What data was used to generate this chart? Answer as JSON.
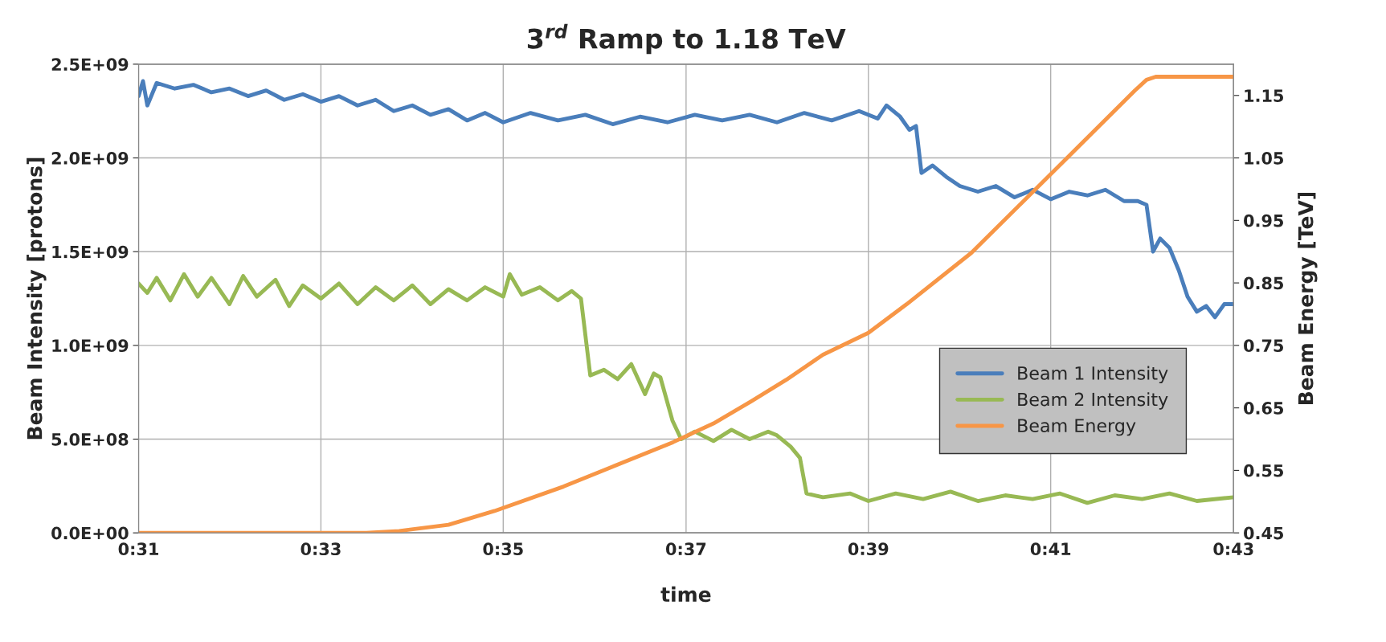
{
  "chart_data": {
    "type": "line",
    "title": "3$^{rd}$ Ramp to 1.18 TeV",
    "xlabel": "time",
    "ylabel": "Beam Intensity [protons]",
    "y2label": "Beam Energy [TeV]",
    "xlim": [
      0.5167,
      0.7167
    ],
    "xticks": [
      {
        "value": 0.5167,
        "label": "0:31"
      },
      {
        "value": 0.55,
        "label": "0:33"
      },
      {
        "value": 0.5833,
        "label": "0:35"
      },
      {
        "value": 0.6167,
        "label": "0:37"
      },
      {
        "value": 0.65,
        "label": "0:39"
      },
      {
        "value": 0.6833,
        "label": "0:41"
      },
      {
        "value": 0.7167,
        "label": "0:43"
      }
    ],
    "ylim": [
      0,
      2500000000
    ],
    "yticks": [
      {
        "value": 0,
        "label": "0.0E+00"
      },
      {
        "value": 500000000,
        "label": "5.0E+08"
      },
      {
        "value": 1000000000,
        "label": "1.0E+09"
      },
      {
        "value": 1500000000,
        "label": "1.5E+09"
      },
      {
        "value": 2000000000,
        "label": "2.0E+09"
      },
      {
        "value": 2500000000,
        "label": "2.5E+09"
      }
    ],
    "y2lim": [
      0.45,
      1.2
    ],
    "y2ticks": [
      0.45,
      0.55,
      0.65,
      0.75,
      0.85,
      0.95,
      1.05,
      1.15
    ],
    "grid": true,
    "legend": "right",
    "series": [
      {
        "name": "Beam 1 Intensity",
        "color": "#4a7ebb",
        "x": [
          0.5167,
          0.5175,
          0.5183,
          0.52,
          0.5233,
          0.5267,
          0.53,
          0.5333,
          0.5367,
          0.54,
          0.5433,
          0.5467,
          0.55,
          0.5533,
          0.5567,
          0.56,
          0.5633,
          0.5667,
          0.57,
          0.5733,
          0.5767,
          0.58,
          0.5833,
          0.5883,
          0.5933,
          0.5983,
          0.6033,
          0.6083,
          0.6133,
          0.6183,
          0.6233,
          0.6283,
          0.6333,
          0.6383,
          0.6433,
          0.6483,
          0.6517,
          0.6533,
          0.6558,
          0.6575,
          0.6587,
          0.6597,
          0.6617,
          0.6642,
          0.6667,
          0.67,
          0.6733,
          0.6767,
          0.68,
          0.6833,
          0.6867,
          0.69,
          0.6933,
          0.6967,
          0.6992,
          0.7008,
          0.702,
          0.7033,
          0.705,
          0.7067,
          0.7083,
          0.71,
          0.7117,
          0.7133,
          0.715,
          0.7167
        ],
        "values": [
          2330000000,
          2410000000,
          2280000000,
          2400000000,
          2370000000,
          2390000000,
          2350000000,
          2370000000,
          2330000000,
          2360000000,
          2310000000,
          2340000000,
          2300000000,
          2330000000,
          2280000000,
          2310000000,
          2250000000,
          2280000000,
          2230000000,
          2260000000,
          2200000000,
          2240000000,
          2190000000,
          2240000000,
          2200000000,
          2230000000,
          2180000000,
          2220000000,
          2190000000,
          2230000000,
          2200000000,
          2230000000,
          2190000000,
          2240000000,
          2200000000,
          2250000000,
          2210000000,
          2280000000,
          2220000000,
          2150000000,
          2170000000,
          1920000000,
          1960000000,
          1900000000,
          1850000000,
          1820000000,
          1850000000,
          1790000000,
          1830000000,
          1780000000,
          1820000000,
          1800000000,
          1830000000,
          1770000000,
          1770000000,
          1750000000,
          1500000000,
          1570000000,
          1520000000,
          1400000000,
          1260000000,
          1180000000,
          1210000000,
          1150000000,
          1220000000,
          1220000000
        ]
      },
      {
        "name": "Beam 2 Intensity",
        "color": "#98b954",
        "x": [
          0.5167,
          0.5183,
          0.52,
          0.5225,
          0.525,
          0.5275,
          0.53,
          0.5333,
          0.5358,
          0.5383,
          0.5417,
          0.5442,
          0.5467,
          0.55,
          0.5533,
          0.5567,
          0.56,
          0.5633,
          0.5667,
          0.57,
          0.5733,
          0.5767,
          0.58,
          0.5833,
          0.5845,
          0.5867,
          0.59,
          0.5933,
          0.5958,
          0.5975,
          0.5992,
          0.6017,
          0.6042,
          0.6067,
          0.6092,
          0.6108,
          0.612,
          0.6142,
          0.6158,
          0.6183,
          0.6217,
          0.625,
          0.6283,
          0.6317,
          0.6333,
          0.6358,
          0.6375,
          0.6387,
          0.6417,
          0.6467,
          0.65,
          0.655,
          0.66,
          0.665,
          0.67,
          0.675,
          0.68,
          0.685,
          0.69,
          0.695,
          0.7,
          0.705,
          0.71,
          0.7167
        ],
        "values": [
          1330000000,
          1280000000,
          1360000000,
          1240000000,
          1380000000,
          1260000000,
          1360000000,
          1220000000,
          1370000000,
          1260000000,
          1350000000,
          1210000000,
          1320000000,
          1250000000,
          1330000000,
          1220000000,
          1310000000,
          1240000000,
          1320000000,
          1220000000,
          1300000000,
          1240000000,
          1310000000,
          1260000000,
          1380000000,
          1270000000,
          1310000000,
          1240000000,
          1290000000,
          1250000000,
          840000000,
          870000000,
          820000000,
          900000000,
          740000000,
          850000000,
          830000000,
          600000000,
          500000000,
          540000000,
          490000000,
          550000000,
          500000000,
          540000000,
          520000000,
          460000000,
          400000000,
          210000000,
          190000000,
          210000000,
          170000000,
          210000000,
          180000000,
          220000000,
          170000000,
          200000000,
          180000000,
          210000000,
          160000000,
          200000000,
          180000000,
          210000000,
          170000000,
          190000000
        ]
      },
      {
        "name": "Beam Energy",
        "color": "#f79646",
        "axis": "y2",
        "x": [
          0.5167,
          0.5583,
          0.5643,
          0.5733,
          0.5817,
          0.5943,
          0.6033,
          0.6143,
          0.6217,
          0.6285,
          0.635,
          0.6417,
          0.65,
          0.657,
          0.6688,
          0.6863,
          0.6987,
          0.7008,
          0.7025,
          0.7167
        ],
        "values": [
          0.45,
          0.45,
          0.453,
          0.463,
          0.485,
          0.524,
          0.556,
          0.595,
          0.625,
          0.66,
          0.695,
          0.735,
          0.77,
          0.816,
          0.898,
          1.05,
          1.158,
          1.175,
          1.18,
          1.18
        ]
      }
    ]
  }
}
